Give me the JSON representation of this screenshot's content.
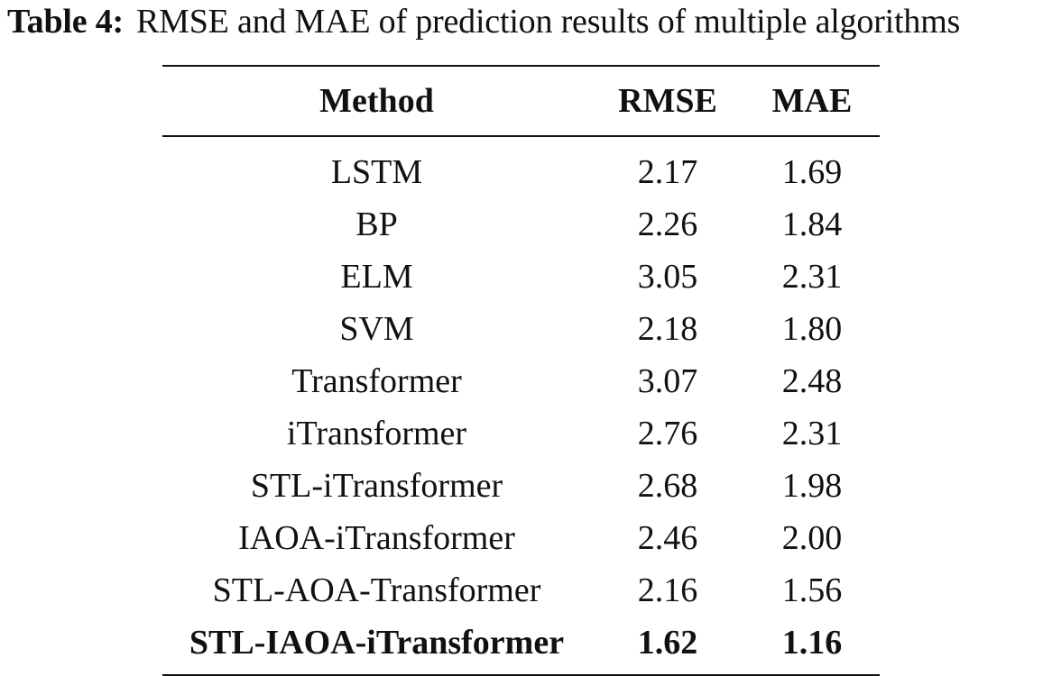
{
  "caption": {
    "label": "Table 4:",
    "text": "RMSE and MAE of prediction results of multiple algorithms"
  },
  "table": {
    "headers": [
      "Method",
      "RMSE",
      "MAE"
    ],
    "rows": [
      {
        "method": "LSTM",
        "rmse": "2.17",
        "mae": "1.69",
        "bold": false
      },
      {
        "method": "BP",
        "rmse": "2.26",
        "mae": "1.84",
        "bold": false
      },
      {
        "method": "ELM",
        "rmse": "3.05",
        "mae": "2.31",
        "bold": false
      },
      {
        "method": "SVM",
        "rmse": "2.18",
        "mae": "1.80",
        "bold": false
      },
      {
        "method": "Transformer",
        "rmse": "3.07",
        "mae": "2.48",
        "bold": false
      },
      {
        "method": "iTransformer",
        "rmse": "2.76",
        "mae": "2.31",
        "bold": false
      },
      {
        "method": "STL-iTransformer",
        "rmse": "2.68",
        "mae": "1.98",
        "bold": false
      },
      {
        "method": "IAOA-iTransformer",
        "rmse": "2.46",
        "mae": "2.00",
        "bold": false
      },
      {
        "method": "STL-AOA-Transformer",
        "rmse": "2.16",
        "mae": "1.56",
        "bold": false
      },
      {
        "method": "STL-IAOA-iTransformer",
        "rmse": "1.62",
        "mae": "1.16",
        "bold": true
      }
    ]
  }
}
